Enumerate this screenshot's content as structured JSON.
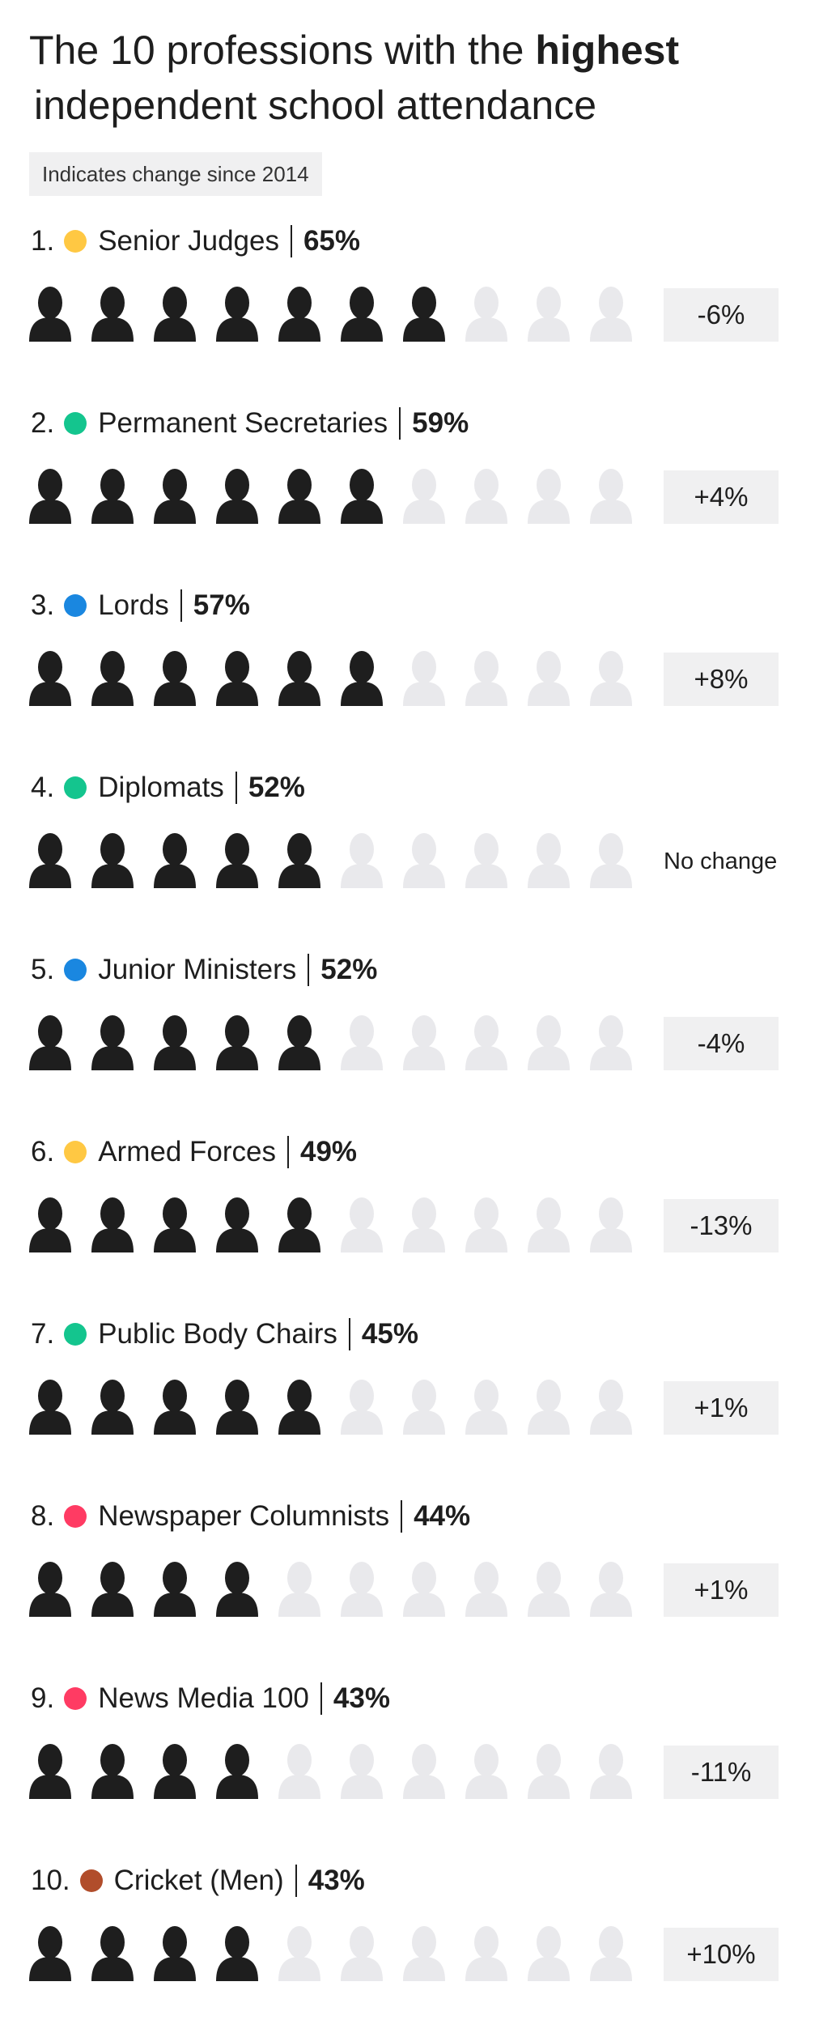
{
  "title": {
    "line1_prefix": "The 10 professions with the ",
    "line1_bold": "highest",
    "line2": "independent school attendance"
  },
  "note": "Indicates change since 2014",
  "colors": {
    "yellow": "#ffc843",
    "green": "#14c58e",
    "blue": "#1a87e0",
    "pink": "#ff3b63",
    "brown": "#b14d2b",
    "icon_filled": "#1e1e1e",
    "icon_empty": "#e9e9ec"
  },
  "chart_data": {
    "type": "pictogram",
    "units_per_row": 10,
    "items": [
      {
        "rank": "1.",
        "name": "Senior Judges",
        "value": 65,
        "label": "65%",
        "filled": 7,
        "change": "-6%",
        "color": "#ffc843"
      },
      {
        "rank": "2.",
        "name": "Permanent Secretaries",
        "value": 59,
        "label": "59%",
        "filled": 6,
        "change": "+4%",
        "color": "#14c58e"
      },
      {
        "rank": "3.",
        "name": "Lords",
        "value": 57,
        "label": "57%",
        "filled": 6,
        "change": "+8%",
        "color": "#1a87e0"
      },
      {
        "rank": "4.",
        "name": "Diplomats",
        "value": 52,
        "label": "52%",
        "filled": 5,
        "change": "No change",
        "color": "#14c58e"
      },
      {
        "rank": "5.",
        "name": "Junior Ministers",
        "value": 52,
        "label": "52%",
        "filled": 5,
        "change": "-4%",
        "color": "#1a87e0"
      },
      {
        "rank": "6.",
        "name": "Armed Forces",
        "value": 49,
        "label": "49%",
        "filled": 5,
        "change": "-13%",
        "color": "#ffc843"
      },
      {
        "rank": "7.",
        "name": "Public Body Chairs",
        "value": 45,
        "label": "45%",
        "filled": 5,
        "change": "+1%",
        "color": "#14c58e"
      },
      {
        "rank": "8.",
        "name": "Newspaper Columnists",
        "value": 44,
        "label": "44%",
        "filled": 4,
        "change": "+1%",
        "color": "#ff3b63"
      },
      {
        "rank": "9.",
        "name": "News Media 100",
        "value": 43,
        "label": "43%",
        "filled": 4,
        "change": "-11%",
        "color": "#ff3b63"
      },
      {
        "rank": "10.",
        "name": "Cricket (Men)",
        "value": 43,
        "label": "43%",
        "filled": 4,
        "change": "+10%",
        "color": "#b14d2b"
      }
    ]
  }
}
